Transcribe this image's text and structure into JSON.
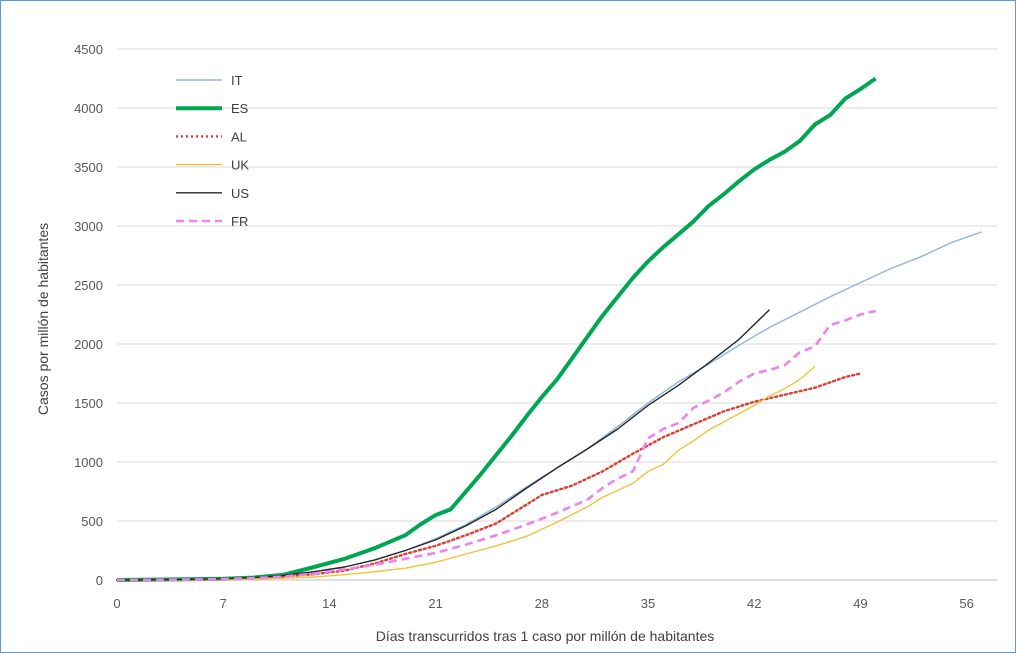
{
  "chart_data": {
    "type": "line",
    "xlabel": "Días transcurridos tras 1 caso por millón de habitantes",
    "ylabel": "Casos por millón de habitantes",
    "xlim": [
      0,
      58
    ],
    "ylim": [
      0,
      4500
    ],
    "xticks": [
      0,
      7,
      14,
      21,
      28,
      35,
      42,
      49,
      56
    ],
    "yticks": [
      0,
      500,
      1000,
      1500,
      2000,
      2500,
      3000,
      3500,
      4000,
      4500
    ],
    "grid": "horizontal",
    "legend_position": "top-left",
    "series": [
      {
        "name": "IT",
        "color": "#8db4e2",
        "style": "thin",
        "points": [
          [
            0,
            0
          ],
          [
            4,
            3
          ],
          [
            7,
            10
          ],
          [
            9,
            20
          ],
          [
            11,
            40
          ],
          [
            13,
            70
          ],
          [
            15,
            110
          ],
          [
            17,
            170
          ],
          [
            19,
            250
          ],
          [
            21,
            350
          ],
          [
            23,
            470
          ],
          [
            25,
            620
          ],
          [
            27,
            790
          ],
          [
            29,
            950
          ],
          [
            31,
            1110
          ],
          [
            33,
            1300
          ],
          [
            35,
            1500
          ],
          [
            37,
            1680
          ],
          [
            39,
            1830
          ],
          [
            41,
            1990
          ],
          [
            43,
            2140
          ],
          [
            45,
            2270
          ],
          [
            47,
            2400
          ],
          [
            49,
            2520
          ],
          [
            51,
            2640
          ],
          [
            53,
            2740
          ],
          [
            55,
            2860
          ],
          [
            57,
            2950
          ]
        ]
      },
      {
        "name": "ES",
        "color": "#00a651",
        "style": "thick",
        "points": [
          [
            0,
            0
          ],
          [
            4,
            5
          ],
          [
            7,
            10
          ],
          [
            9,
            20
          ],
          [
            11,
            45
          ],
          [
            13,
            110
          ],
          [
            15,
            180
          ],
          [
            17,
            270
          ],
          [
            19,
            380
          ],
          [
            20,
            470
          ],
          [
            21,
            550
          ],
          [
            22,
            600
          ],
          [
            23,
            750
          ],
          [
            24,
            900
          ],
          [
            25,
            1060
          ],
          [
            26,
            1220
          ],
          [
            27,
            1390
          ],
          [
            28,
            1550
          ],
          [
            29,
            1700
          ],
          [
            30,
            1880
          ],
          [
            31,
            2060
          ],
          [
            32,
            2240
          ],
          [
            33,
            2400
          ],
          [
            34,
            2560
          ],
          [
            35,
            2700
          ],
          [
            36,
            2820
          ],
          [
            37,
            2930
          ],
          [
            38,
            3040
          ],
          [
            39,
            3170
          ],
          [
            40,
            3270
          ],
          [
            41,
            3380
          ],
          [
            42,
            3480
          ],
          [
            43,
            3560
          ],
          [
            44,
            3630
          ],
          [
            45,
            3720
          ],
          [
            46,
            3860
          ],
          [
            47,
            3940
          ],
          [
            48,
            4080
          ],
          [
            49,
            4160
          ],
          [
            50,
            4250
          ]
        ]
      },
      {
        "name": "AL",
        "color": "#e03c31",
        "style": "dotted",
        "points": [
          [
            0,
            0
          ],
          [
            4,
            2
          ],
          [
            7,
            8
          ],
          [
            9,
            15
          ],
          [
            11,
            30
          ],
          [
            13,
            50
          ],
          [
            15,
            80
          ],
          [
            17,
            140
          ],
          [
            19,
            220
          ],
          [
            21,
            290
          ],
          [
            23,
            380
          ],
          [
            25,
            480
          ],
          [
            26,
            560
          ],
          [
            27,
            640
          ],
          [
            28,
            720
          ],
          [
            30,
            800
          ],
          [
            32,
            920
          ],
          [
            34,
            1070
          ],
          [
            36,
            1210
          ],
          [
            38,
            1320
          ],
          [
            40,
            1430
          ],
          [
            42,
            1510
          ],
          [
            44,
            1570
          ],
          [
            46,
            1630
          ],
          [
            48,
            1720
          ],
          [
            49,
            1750
          ]
        ]
      },
      {
        "name": "UK",
        "color": "#f2c23b",
        "style": "thin",
        "points": [
          [
            0,
            0
          ],
          [
            5,
            2
          ],
          [
            8,
            5
          ],
          [
            11,
            15
          ],
          [
            13,
            25
          ],
          [
            15,
            45
          ],
          [
            17,
            70
          ],
          [
            19,
            100
          ],
          [
            21,
            150
          ],
          [
            23,
            220
          ],
          [
            25,
            290
          ],
          [
            27,
            370
          ],
          [
            29,
            490
          ],
          [
            31,
            620
          ],
          [
            32,
            700
          ],
          [
            34,
            820
          ],
          [
            35,
            920
          ],
          [
            36,
            980
          ],
          [
            37,
            1100
          ],
          [
            38,
            1180
          ],
          [
            39,
            1270
          ],
          [
            40,
            1340
          ],
          [
            41,
            1410
          ],
          [
            42,
            1480
          ],
          [
            43,
            1560
          ],
          [
            44,
            1620
          ],
          [
            45,
            1700
          ],
          [
            46,
            1810
          ]
        ]
      },
      {
        "name": "US",
        "color": "#262626",
        "style": "thin",
        "points": [
          [
            0,
            0
          ],
          [
            4,
            3
          ],
          [
            7,
            10
          ],
          [
            9,
            20
          ],
          [
            11,
            40
          ],
          [
            13,
            70
          ],
          [
            15,
            110
          ],
          [
            17,
            170
          ],
          [
            19,
            250
          ],
          [
            21,
            340
          ],
          [
            23,
            460
          ],
          [
            25,
            600
          ],
          [
            27,
            780
          ],
          [
            29,
            950
          ],
          [
            31,
            1110
          ],
          [
            33,
            1280
          ],
          [
            35,
            1480
          ],
          [
            37,
            1650
          ],
          [
            39,
            1840
          ],
          [
            41,
            2040
          ],
          [
            43,
            2290
          ]
        ]
      },
      {
        "name": "FR",
        "color": "#ee82ee",
        "style": "dashed",
        "points": [
          [
            0,
            0
          ],
          [
            4,
            2
          ],
          [
            7,
            8
          ],
          [
            9,
            15
          ],
          [
            11,
            30
          ],
          [
            13,
            55
          ],
          [
            15,
            90
          ],
          [
            17,
            130
          ],
          [
            19,
            180
          ],
          [
            21,
            230
          ],
          [
            23,
            300
          ],
          [
            25,
            380
          ],
          [
            27,
            470
          ],
          [
            29,
            570
          ],
          [
            31,
            680
          ],
          [
            32,
            780
          ],
          [
            33,
            860
          ],
          [
            34,
            920
          ],
          [
            35,
            1200
          ],
          [
            36,
            1280
          ],
          [
            37,
            1330
          ],
          [
            38,
            1460
          ],
          [
            39,
            1520
          ],
          [
            40,
            1590
          ],
          [
            41,
            1680
          ],
          [
            42,
            1750
          ],
          [
            43,
            1780
          ],
          [
            44,
            1820
          ],
          [
            45,
            1930
          ],
          [
            46,
            1980
          ],
          [
            47,
            2160
          ],
          [
            48,
            2200
          ],
          [
            49,
            2250
          ],
          [
            50,
            2280
          ]
        ]
      }
    ]
  }
}
